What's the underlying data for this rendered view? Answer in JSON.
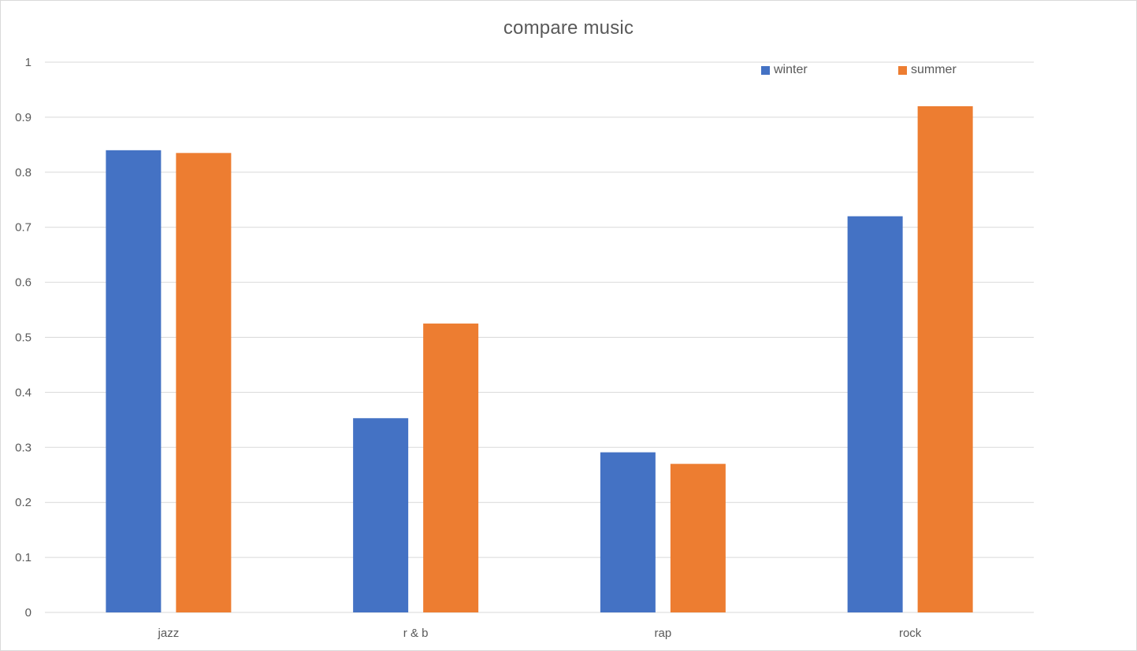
{
  "chart_data": {
    "type": "bar",
    "title": "compare music",
    "xlabel": "",
    "ylabel": "",
    "categories": [
      "jazz",
      "r & b",
      "rap",
      "rock"
    ],
    "series": [
      {
        "name": "winter",
        "color": "#4472C4",
        "values": [
          0.84,
          0.353,
          0.291,
          0.72
        ]
      },
      {
        "name": "summer",
        "color": "#ED7D31",
        "values": [
          0.835,
          0.525,
          0.27,
          0.92
        ]
      }
    ],
    "ylim": [
      0,
      1
    ],
    "yticks": [
      "0",
      "0.1",
      "0.2",
      "0.3",
      "0.4",
      "0.5",
      "0.6",
      "0.7",
      "0.8",
      "0.9",
      "1"
    ],
    "grid": true,
    "legend_position": "top-right"
  }
}
